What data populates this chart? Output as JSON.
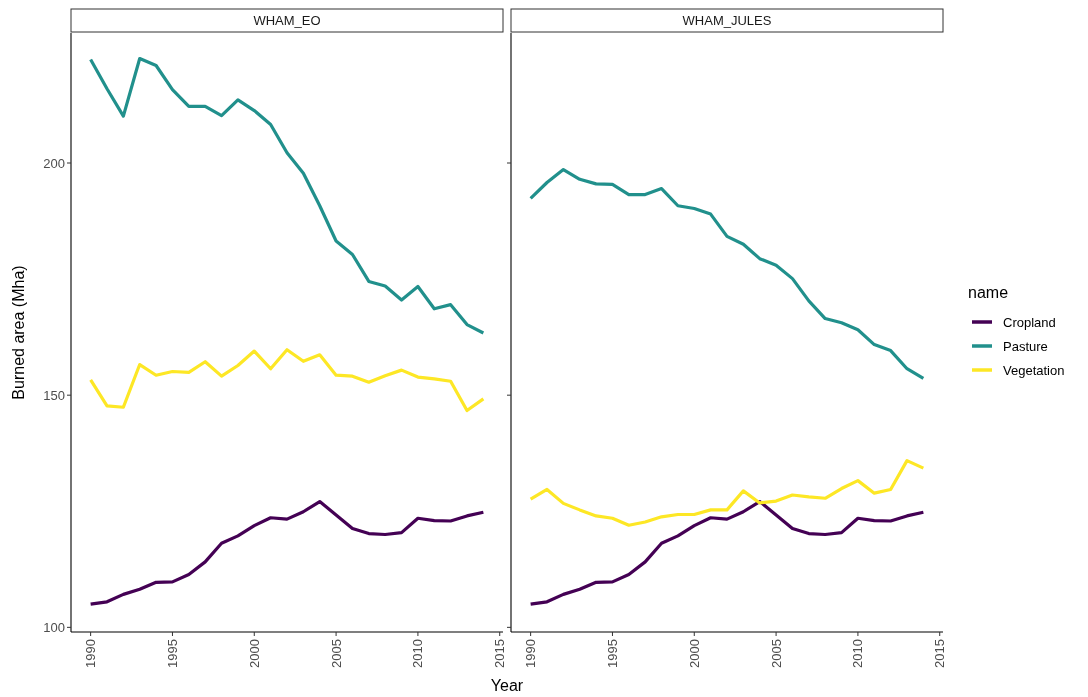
{
  "chart_data": [
    {
      "type": "line",
      "title": "WHAM_EO",
      "xlabel": "Year",
      "ylabel": "Burned area (Mha)",
      "x": [
        1990,
        1991,
        1992,
        1993,
        1994,
        1995,
        1996,
        1997,
        1998,
        1999,
        2000,
        2001,
        2002,
        2003,
        2004,
        2005,
        2006,
        2007,
        2008,
        2009,
        2010,
        2011,
        2012,
        2013,
        2014
      ],
      "xlim": [
        1988.8,
        2015.2
      ],
      "xticks": [
        1990,
        1995,
        2000,
        2005,
        2010,
        2015
      ],
      "ylim": [
        99,
        228
      ],
      "yticks": [
        100,
        150,
        200
      ],
      "grid": false,
      "legend": false,
      "line_style": "solid",
      "marker": "none",
      "series": [
        {
          "color": "#440154",
          "values": [
            105.0,
            105.5,
            107.1,
            108.2,
            109.7,
            109.8,
            111.4,
            114.1,
            118.1,
            119.7,
            121.9,
            123.6,
            123.3,
            124.9,
            127.1,
            124.2,
            121.3,
            120.2,
            120.0,
            120.4,
            123.5,
            123.0,
            122.9,
            124.0,
            124.8
          ]
        },
        {
          "color": "#21908c",
          "values": [
            222.3,
            216.0,
            210.1,
            222.5,
            221.0,
            215.8,
            212.2,
            212.2,
            210.2,
            213.6,
            211.3,
            208.3,
            202.2,
            197.8,
            190.8,
            183.2,
            180.3,
            174.5,
            173.5,
            170.5,
            173.4,
            168.6,
            169.5,
            165.2,
            163.4
          ]
        },
        {
          "color": "#fde725",
          "values": [
            153.3,
            147.7,
            147.4,
            156.6,
            154.3,
            155.1,
            154.9,
            157.2,
            154.1,
            156.4,
            159.5,
            155.7,
            159.8,
            157.3,
            158.7,
            154.3,
            154.1,
            152.8,
            154.2,
            155.4,
            153.9,
            153.5,
            153.0,
            146.7,
            149.2
          ]
        }
      ]
    },
    {
      "type": "line",
      "title": "WHAM_JULES",
      "legend_title": "name",
      "x": [
        1990,
        1991,
        1992,
        1993,
        1994,
        1995,
        1996,
        1997,
        1998,
        1999,
        2000,
        2001,
        2002,
        2003,
        2004,
        2005,
        2006,
        2007,
        2008,
        2009,
        2010,
        2011,
        2012,
        2013,
        2014
      ],
      "xlim": [
        1988.8,
        2015.2
      ],
      "xticks": [
        1990,
        1995,
        2000,
        2005,
        2010,
        2015
      ],
      "ylim": [
        99,
        228
      ],
      "yticks": [
        100,
        150,
        200
      ],
      "tick_labels": "x",
      "grid": false,
      "legend": "right",
      "line_style": "solid",
      "marker": "none",
      "series": [
        {
          "name": "Cropland",
          "color": "#440154",
          "values": [
            105.0,
            105.5,
            107.1,
            108.2,
            109.7,
            109.8,
            111.4,
            114.1,
            118.1,
            119.7,
            121.9,
            123.6,
            123.3,
            124.9,
            127.1,
            124.2,
            121.3,
            120.2,
            120.0,
            120.4,
            123.5,
            123.0,
            122.9,
            124.0,
            124.8
          ]
        },
        {
          "name": "Pasture",
          "color": "#21908c",
          "values": [
            192.4,
            195.8,
            198.6,
            196.5,
            195.5,
            195.4,
            193.2,
            193.2,
            194.5,
            190.8,
            190.2,
            189.0,
            184.2,
            182.5,
            179.4,
            178.0,
            175.1,
            170.3,
            166.5,
            165.6,
            164.1,
            160.9,
            159.6,
            155.7,
            153.6
          ]
        },
        {
          "name": "Vegetation",
          "color": "#fde725",
          "values": [
            127.6,
            129.7,
            126.7,
            125.3,
            124.0,
            123.5,
            122.0,
            122.7,
            123.8,
            124.3,
            124.3,
            125.3,
            125.3,
            129.4,
            126.8,
            127.2,
            128.5,
            128.1,
            127.8,
            129.9,
            131.6,
            128.9,
            129.7,
            135.9,
            134.3
          ]
        }
      ]
    }
  ]
}
